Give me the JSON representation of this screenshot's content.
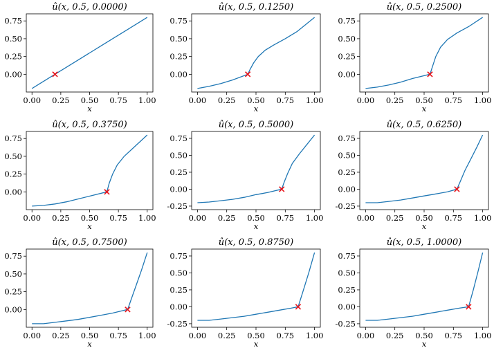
{
  "colors": {
    "line": "#1f77b4",
    "marker": "#e8141b"
  },
  "chart_data": [
    {
      "type": "line",
      "title": "û(x, 0.5, 0.0000)",
      "xlabel": "x",
      "ylabel": "",
      "xlim": [
        0,
        1
      ],
      "ylim": [
        -0.2,
        0.8
      ],
      "xticks": [
        "0.00",
        "0.25",
        "0.50",
        "0.75",
        "1.00"
      ],
      "yticks": [
        "0.00",
        "0.25",
        "0.50",
        "0.75"
      ],
      "x": [
        0.0,
        0.1,
        0.2,
        0.3,
        0.4,
        0.5,
        0.6,
        0.7,
        0.8,
        0.9,
        1.0
      ],
      "y": [
        -0.2,
        -0.1,
        0.0,
        0.1,
        0.2,
        0.3,
        0.4,
        0.5,
        0.6,
        0.7,
        0.8
      ],
      "marker": {
        "symbol": "x",
        "x": 0.2,
        "y": 0.0
      }
    },
    {
      "type": "line",
      "title": "û(x, 0.5, 0.1250)",
      "xlabel": "x",
      "ylabel": "",
      "xlim": [
        0,
        1
      ],
      "ylim": [
        -0.2,
        0.8
      ],
      "xticks": [
        "0.00",
        "0.25",
        "0.50",
        "0.75",
        "1.00"
      ],
      "yticks": [
        "0.00",
        "0.25",
        "0.50",
        "0.75"
      ],
      "x": [
        0.0,
        0.1,
        0.2,
        0.3,
        0.43,
        0.45,
        0.48,
        0.52,
        0.58,
        0.65,
        0.75,
        0.85,
        1.0
      ],
      "y": [
        -0.2,
        -0.17,
        -0.13,
        -0.08,
        0.0,
        0.07,
        0.16,
        0.25,
        0.34,
        0.41,
        0.5,
        0.6,
        0.8
      ],
      "marker": {
        "symbol": "x",
        "x": 0.43,
        "y": 0.0
      }
    },
    {
      "type": "line",
      "title": "û(x, 0.5, 0.2500)",
      "xlabel": "x",
      "ylabel": "",
      "xlim": [
        0,
        1
      ],
      "ylim": [
        -0.2,
        0.8
      ],
      "xticks": [
        "0.00",
        "0.25",
        "0.50",
        "0.75",
        "1.00"
      ],
      "yticks": [
        "0.00",
        "0.25",
        "0.50",
        "0.75"
      ],
      "x": [
        0.0,
        0.1,
        0.2,
        0.3,
        0.4,
        0.55,
        0.57,
        0.6,
        0.64,
        0.7,
        0.78,
        0.88,
        1.0
      ],
      "y": [
        -0.2,
        -0.18,
        -0.15,
        -0.11,
        -0.06,
        0.0,
        0.1,
        0.25,
        0.38,
        0.49,
        0.58,
        0.67,
        0.8
      ],
      "marker": {
        "symbol": "x",
        "x": 0.55,
        "y": 0.0
      }
    },
    {
      "type": "line",
      "title": "û(x, 0.5, 0.3750)",
      "xlabel": "x",
      "ylabel": "",
      "xlim": [
        0,
        1
      ],
      "ylim": [
        -0.2,
        0.8
      ],
      "xticks": [
        "0.00",
        "0.25",
        "0.50",
        "0.75",
        "1.00"
      ],
      "yticks": [
        "0.00",
        "0.25",
        "0.50",
        "0.75"
      ],
      "x": [
        0.0,
        0.1,
        0.2,
        0.3,
        0.4,
        0.5,
        0.65,
        0.67,
        0.7,
        0.74,
        0.8,
        0.88,
        1.0
      ],
      "y": [
        -0.2,
        -0.19,
        -0.17,
        -0.14,
        -0.1,
        -0.06,
        0.0,
        0.12,
        0.25,
        0.38,
        0.5,
        0.62,
        0.8
      ],
      "marker": {
        "symbol": "x",
        "x": 0.65,
        "y": 0.0
      }
    },
    {
      "type": "line",
      "title": "û(x, 0.5, 0.5000)",
      "xlabel": "x",
      "ylabel": "",
      "xlim": [
        0,
        1
      ],
      "ylim": [
        -0.25,
        0.8
      ],
      "xticks": [
        "0.00",
        "0.25",
        "0.50",
        "0.75",
        "1.00"
      ],
      "yticks": [
        "-0.25",
        "0.00",
        "0.25",
        "0.50",
        "0.75"
      ],
      "x": [
        0.0,
        0.1,
        0.2,
        0.3,
        0.4,
        0.5,
        0.6,
        0.72,
        0.74,
        0.77,
        0.81,
        0.87,
        0.93,
        1.0
      ],
      "y": [
        -0.2,
        -0.19,
        -0.17,
        -0.15,
        -0.12,
        -0.08,
        -0.05,
        0.0,
        0.1,
        0.23,
        0.38,
        0.52,
        0.65,
        0.8
      ],
      "marker": {
        "symbol": "x",
        "x": 0.72,
        "y": 0.0
      }
    },
    {
      "type": "line",
      "title": "û(x, 0.5, 0.6250)",
      "xlabel": "x",
      "ylabel": "",
      "xlim": [
        0,
        1
      ],
      "ylim": [
        -0.25,
        0.8
      ],
      "xticks": [
        "0.00",
        "0.25",
        "0.50",
        "0.75",
        "1.00"
      ],
      "yticks": [
        "-0.25",
        "0.00",
        "0.25",
        "0.50",
        "0.75"
      ],
      "x": [
        0.0,
        0.1,
        0.2,
        0.3,
        0.4,
        0.5,
        0.6,
        0.7,
        0.78,
        0.81,
        0.85,
        0.9,
        0.95,
        1.0
      ],
      "y": [
        -0.2,
        -0.2,
        -0.18,
        -0.16,
        -0.13,
        -0.1,
        -0.07,
        -0.04,
        0.0,
        0.12,
        0.28,
        0.45,
        0.62,
        0.8
      ],
      "marker": {
        "symbol": "x",
        "x": 0.78,
        "y": 0.0
      }
    },
    {
      "type": "line",
      "title": "û(x, 0.5, 0.7500)",
      "xlabel": "x",
      "ylabel": "",
      "xlim": [
        0,
        1
      ],
      "ylim": [
        -0.2,
        0.8
      ],
      "xticks": [
        "0.00",
        "0.25",
        "0.50",
        "0.75",
        "1.00"
      ],
      "yticks": [
        "0.00",
        "0.25",
        "0.50",
        "0.75"
      ],
      "x": [
        0.0,
        0.1,
        0.2,
        0.3,
        0.4,
        0.5,
        0.6,
        0.7,
        0.83,
        0.86,
        0.9,
        0.95,
        1.0
      ],
      "y": [
        -0.2,
        -0.2,
        -0.18,
        -0.16,
        -0.14,
        -0.11,
        -0.08,
        -0.05,
        0.0,
        0.14,
        0.32,
        0.55,
        0.8
      ],
      "marker": {
        "symbol": "x",
        "x": 0.83,
        "y": 0.0
      }
    },
    {
      "type": "line",
      "title": "û(x, 0.5, 0.8750)",
      "xlabel": "x",
      "ylabel": "",
      "xlim": [
        0,
        1
      ],
      "ylim": [
        -0.25,
        0.8
      ],
      "xticks": [
        "0.00",
        "0.25",
        "0.50",
        "0.75",
        "1.00"
      ],
      "yticks": [
        "-0.25",
        "0.00",
        "0.25",
        "0.50",
        "0.75"
      ],
      "x": [
        0.0,
        0.1,
        0.2,
        0.3,
        0.4,
        0.5,
        0.6,
        0.7,
        0.8,
        0.86,
        0.9,
        0.95,
        1.0
      ],
      "y": [
        -0.2,
        -0.2,
        -0.18,
        -0.16,
        -0.14,
        -0.11,
        -0.08,
        -0.05,
        -0.02,
        0.0,
        0.22,
        0.5,
        0.8
      ],
      "marker": {
        "symbol": "x",
        "x": 0.86,
        "y": 0.0
      }
    },
    {
      "type": "line",
      "title": "û(x, 0.5, 1.0000)",
      "xlabel": "x",
      "ylabel": "",
      "xlim": [
        0,
        1
      ],
      "ylim": [
        -0.25,
        0.8
      ],
      "xticks": [
        "0.00",
        "0.25",
        "0.50",
        "0.75",
        "1.00"
      ],
      "yticks": [
        "-0.25",
        "0.00",
        "0.25",
        "0.50",
        "0.75"
      ],
      "x": [
        0.0,
        0.1,
        0.2,
        0.3,
        0.4,
        0.5,
        0.6,
        0.7,
        0.8,
        0.88,
        0.92,
        0.96,
        1.0
      ],
      "y": [
        -0.2,
        -0.2,
        -0.18,
        -0.16,
        -0.14,
        -0.11,
        -0.08,
        -0.05,
        -0.02,
        0.0,
        0.25,
        0.52,
        0.8
      ],
      "marker": {
        "symbol": "x",
        "x": 0.88,
        "y": 0.0
      }
    }
  ]
}
